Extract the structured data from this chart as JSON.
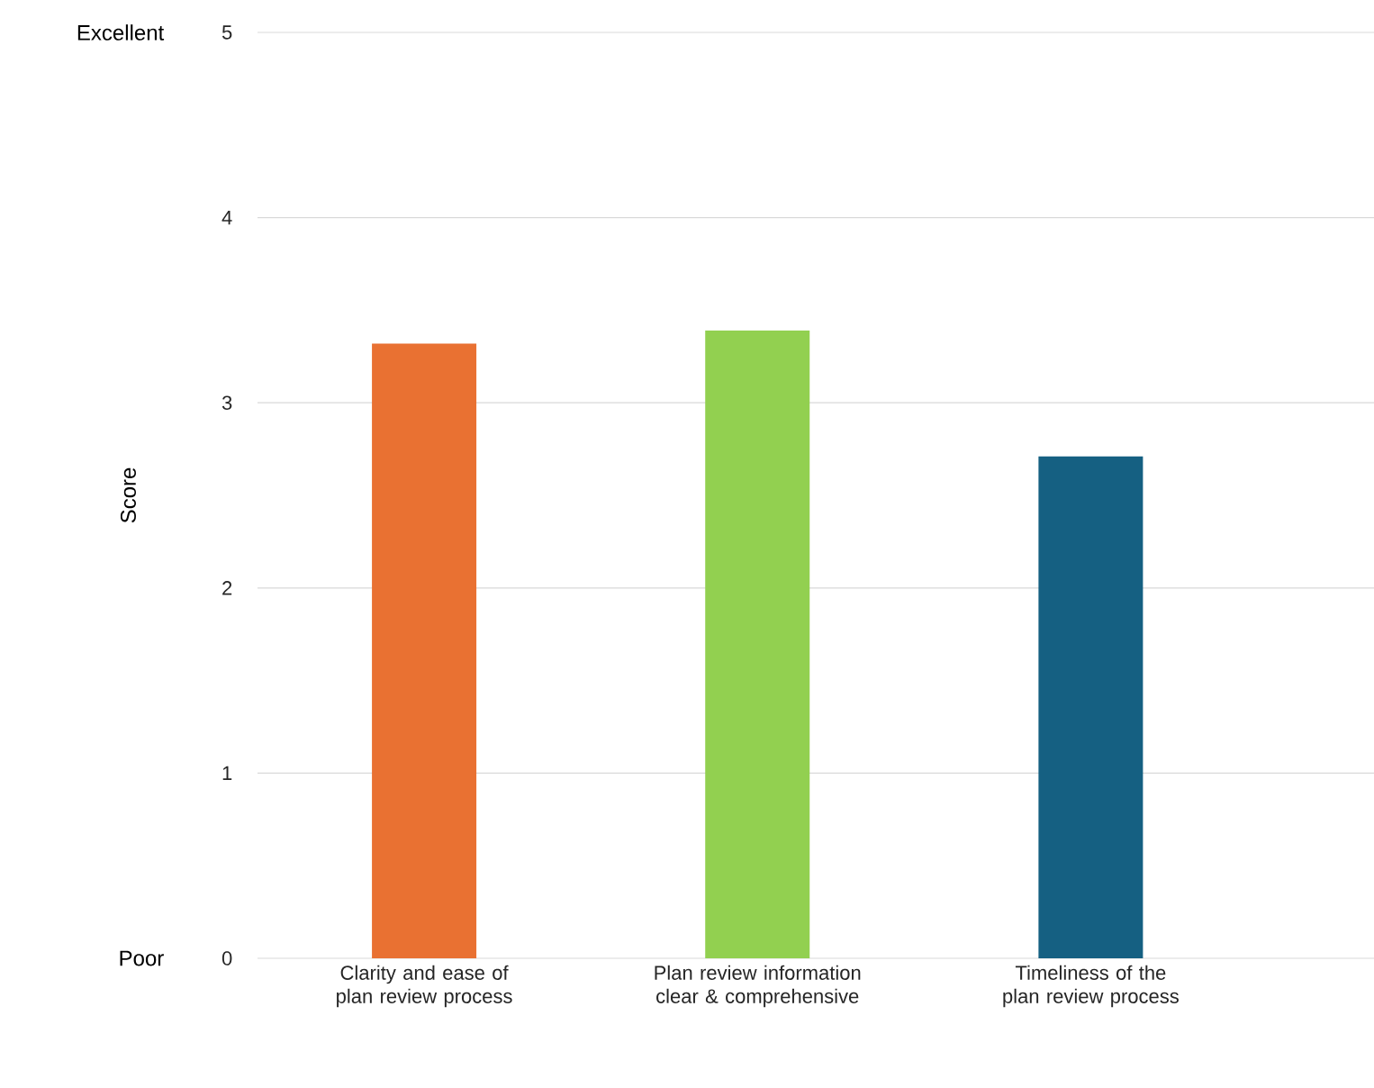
{
  "chart_data": {
    "type": "bar",
    "ylabel": "Score",
    "categories": [
      "Clarity and ease of plan review process",
      "Plan review information clear & comprehensive",
      "Timeliness of the plan review process"
    ],
    "values": [
      3.32,
      3.39,
      2.71
    ],
    "colors": [
      "#e97132",
      "#92d050",
      "#156082"
    ],
    "ylim": [
      0,
      5
    ],
    "yticks": [
      0,
      1,
      2,
      3,
      4,
      5
    ],
    "grid": "y",
    "annotations": [
      "Excellent",
      "Poor"
    ]
  }
}
